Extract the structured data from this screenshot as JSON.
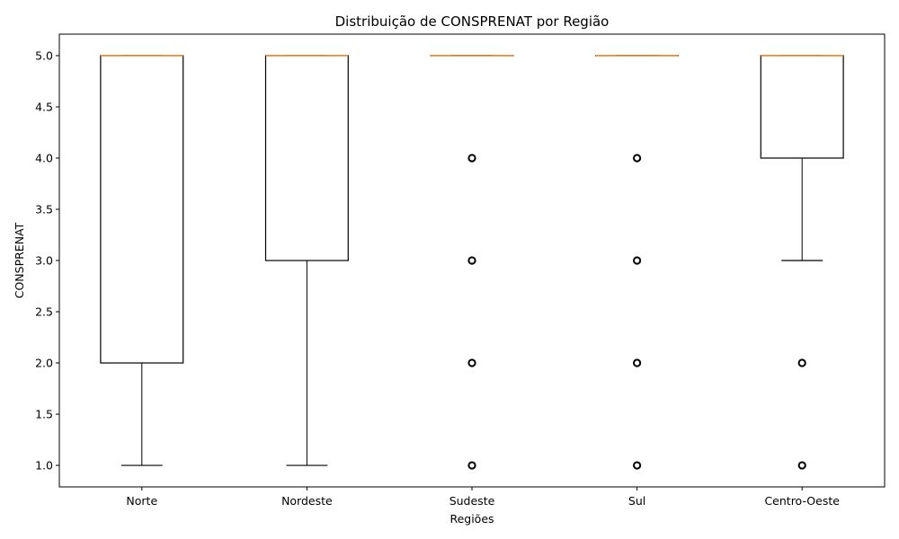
{
  "chart_data": {
    "type": "box",
    "title": "Distribuição de CONSPRENAT por Região",
    "xlabel": "Regiões",
    "ylabel": "CONSPRENAT",
    "ylim": [
      0.79,
      5.21
    ],
    "yticks": [
      "1.0",
      "1.5",
      "2.0",
      "2.5",
      "3.0",
      "3.5",
      "4.0",
      "4.5",
      "5.0"
    ],
    "grid": false,
    "colors": {
      "box": "#000000",
      "median": "#ff7f0e",
      "flier": "#000000"
    },
    "series": [
      {
        "category": "Norte",
        "whisker_low": 1,
        "q1": 2,
        "median": 5,
        "q3": 5,
        "whisker_high": 5,
        "outliers": []
      },
      {
        "category": "Nordeste",
        "whisker_low": 1,
        "q1": 3,
        "median": 5,
        "q3": 5,
        "whisker_high": 5,
        "outliers": []
      },
      {
        "category": "Sudeste",
        "whisker_low": 5,
        "q1": 5,
        "median": 5,
        "q3": 5,
        "whisker_high": 5,
        "outliers": [
          1,
          2,
          3,
          4
        ]
      },
      {
        "category": "Sul",
        "whisker_low": 5,
        "q1": 5,
        "median": 5,
        "q3": 5,
        "whisker_high": 5,
        "outliers": [
          1,
          2,
          3,
          4
        ]
      },
      {
        "category": "Centro-Oeste",
        "whisker_low": 3,
        "q1": 4,
        "median": 5,
        "q3": 5,
        "whisker_high": 5,
        "outliers": [
          1,
          2
        ]
      }
    ]
  }
}
